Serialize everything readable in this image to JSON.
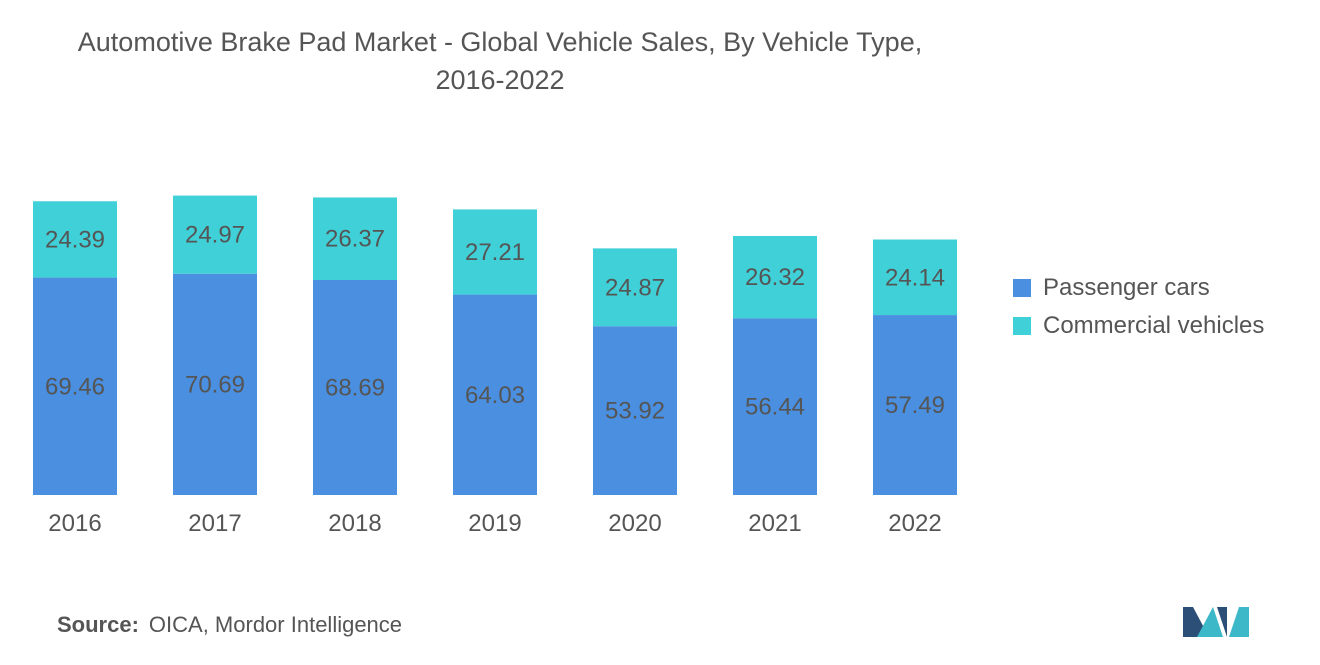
{
  "title_line1": "Automotive Brake Pad Market - Global Vehicle Sales, By Vehicle Type,",
  "title_line2": "2016-2022",
  "source_label": "Source:",
  "source_text": "OICA, Mordor Intelligence",
  "logo_icon": "mordor-intelligence-logo",
  "colors": {
    "passenger": "#4a8fe0",
    "commercial": "#40d0d8",
    "text": "#555555"
  },
  "chart_data": {
    "type": "bar",
    "stacked": true,
    "title": "Automotive Brake Pad Market - Global Vehicle Sales, By Vehicle Type, 2016-2022",
    "categories": [
      "2016",
      "2017",
      "2018",
      "2019",
      "2020",
      "2021",
      "2022"
    ],
    "series": [
      {
        "name": "Passenger cars",
        "values": [
          69.46,
          70.69,
          68.69,
          64.03,
          53.92,
          56.44,
          57.49
        ]
      },
      {
        "name": "Commercial vehicles",
        "values": [
          24.39,
          24.97,
          26.37,
          27.21,
          24.87,
          26.32,
          24.14
        ]
      }
    ],
    "legend_position": "right",
    "grid": false,
    "ylim": [
      0,
      100
    ]
  }
}
